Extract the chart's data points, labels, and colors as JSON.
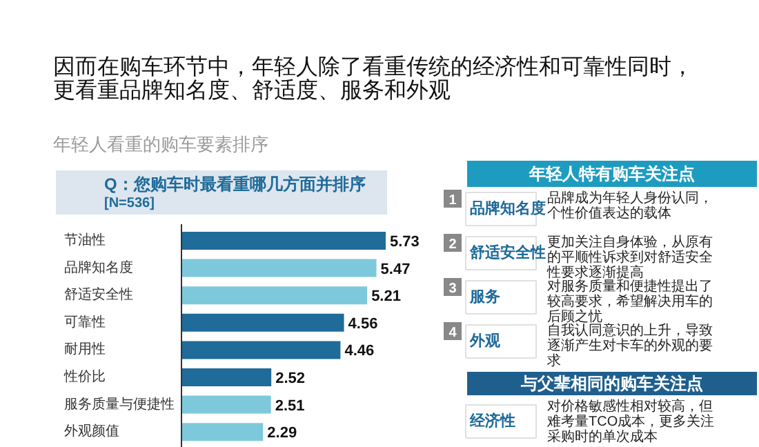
{
  "chart_data": {
    "type": "bar",
    "orientation": "horizontal",
    "title": "因而在购车环节中，年轻人除了看重传统的经济性和可靠性同时，更看重品牌知名度、舒适度、服务和外观",
    "subtitle": "年轻人看重的购车要素排序",
    "categories": [
      "节油性",
      "品牌知名度",
      "舒适安全性",
      "可靠性",
      "耐用性",
      "性价比",
      "服务质量与便捷性",
      "外观颜值"
    ],
    "values": [
      5.73,
      5.47,
      5.21,
      4.56,
      4.46,
      2.52,
      2.51,
      2.29
    ],
    "colors": [
      "#1f6b9a",
      "#7ec8dc",
      "#7ec8dc",
      "#1f6b9a",
      "#1f6b9a",
      "#1f6b9a",
      "#7ec8dc",
      "#7ec8dc"
    ],
    "data_labels": true,
    "annotations": [
      "Q：您购车时最看重哪几方面并排序",
      "[N=536]",
      "年轻人特有购车关注点",
      "1",
      "品牌知名度",
      "品牌成为年轻人身份认同，个性价值表达的载体",
      "2",
      "舒适安全性",
      "更加关注自身体验，从原有的平顺性诉求到对舒适安全性要求逐渐提高",
      "3",
      "服务",
      "对服务质量和便捷性提出了较高要求，希望解决用车的后顾之忧",
      "4",
      "外观",
      "自我认同意识的上升，导致逐渐产生对卡车的外观的要求",
      "与父辈相同的购车关注点",
      "经济性",
      "对价格敏感性相对较高，但难考量TCO成本，更多关注采购时的单次成本"
    ]
  }
}
